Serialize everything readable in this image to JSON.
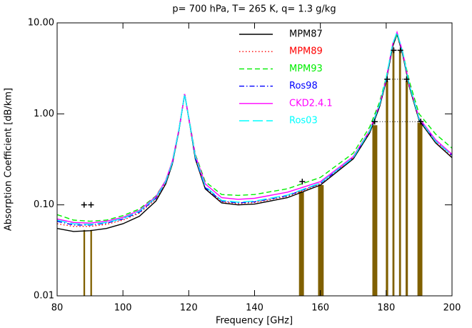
{
  "chart_data": {
    "type": "line",
    "title": "p= 700 hPa, T= 265 K, q= 1.3 g/kg",
    "xlabel": "Frequency [GHz]",
    "ylabel": "Absorption Coefficient [dB/km]",
    "ylog": true,
    "xlim": [
      80,
      200
    ],
    "xticks": [
      80,
      100,
      120,
      140,
      160,
      180,
      200
    ],
    "ylim": [
      0.01,
      10
    ],
    "yticks": [
      {
        "value": 0.01,
        "label": "0.01"
      },
      {
        "value": 0.1,
        "label": "0.10"
      },
      {
        "value": 1,
        "label": "1.00"
      },
      {
        "value": 10,
        "label": "10.00"
      }
    ],
    "x": [
      80,
      85,
      90,
      95,
      100,
      105,
      110,
      113,
      115,
      117,
      118.75,
      120.5,
      122,
      125,
      130,
      135,
      140,
      150,
      160,
      170,
      175,
      178,
      180,
      182,
      183.3,
      185,
      187,
      190,
      195,
      200
    ],
    "series": [
      {
        "name": "MPM87",
        "color": "#000000",
        "style": "solid",
        "values": [
          0.055,
          0.051,
          0.052,
          0.055,
          0.062,
          0.075,
          0.11,
          0.17,
          0.28,
          0.65,
          1.65,
          0.7,
          0.32,
          0.15,
          0.105,
          0.1,
          0.102,
          0.12,
          0.165,
          0.32,
          0.62,
          1.2,
          2.3,
          5.5,
          7.5,
          4.5,
          2.0,
          0.85,
          0.48,
          0.33
        ]
      },
      {
        "name": "MPM89",
        "color": "#ff0000",
        "style": "dotted",
        "values": [
          0.062,
          0.058,
          0.058,
          0.061,
          0.068,
          0.081,
          0.116,
          0.175,
          0.29,
          0.66,
          1.65,
          0.71,
          0.33,
          0.155,
          0.108,
          0.103,
          0.106,
          0.124,
          0.17,
          0.33,
          0.64,
          1.25,
          2.4,
          5.7,
          7.6,
          4.6,
          2.05,
          0.87,
          0.49,
          0.34
        ]
      },
      {
        "name": "MPM93",
        "color": "#00ee00",
        "style": "dashed",
        "values": [
          0.078,
          0.068,
          0.066,
          0.068,
          0.076,
          0.09,
          0.125,
          0.185,
          0.3,
          0.67,
          1.65,
          0.73,
          0.36,
          0.18,
          0.13,
          0.127,
          0.13,
          0.15,
          0.2,
          0.37,
          0.72,
          1.35,
          2.5,
          5.8,
          7.5,
          4.8,
          2.3,
          1.0,
          0.6,
          0.42
        ]
      },
      {
        "name": "Ros98",
        "color": "#0000ff",
        "style": "dashdot",
        "values": [
          0.066,
          0.06,
          0.06,
          0.063,
          0.07,
          0.083,
          0.118,
          0.178,
          0.29,
          0.66,
          1.65,
          0.71,
          0.33,
          0.155,
          0.11,
          0.105,
          0.108,
          0.126,
          0.172,
          0.33,
          0.65,
          1.25,
          2.4,
          5.8,
          7.8,
          4.7,
          2.1,
          0.88,
          0.5,
          0.35
        ]
      },
      {
        "name": "CKD2.4.1",
        "color": "#ff00ff",
        "style": "solid",
        "values": [
          0.07,
          0.064,
          0.063,
          0.066,
          0.073,
          0.087,
          0.123,
          0.185,
          0.3,
          0.67,
          1.65,
          0.72,
          0.35,
          0.17,
          0.12,
          0.115,
          0.118,
          0.138,
          0.18,
          0.34,
          0.66,
          1.27,
          2.4,
          5.9,
          7.9,
          4.8,
          2.1,
          0.9,
          0.52,
          0.36
        ]
      },
      {
        "name": "Ros03",
        "color": "#00ffff",
        "style": "longdash",
        "values": [
          0.068,
          0.062,
          0.061,
          0.064,
          0.071,
          0.085,
          0.12,
          0.18,
          0.29,
          0.66,
          1.65,
          0.71,
          0.34,
          0.16,
          0.112,
          0.107,
          0.11,
          0.128,
          0.174,
          0.33,
          0.65,
          1.26,
          2.45,
          5.9,
          7.9,
          4.75,
          2.1,
          0.88,
          0.5,
          0.35
        ]
      }
    ],
    "bands": {
      "color": "#806000",
      "x0": [
        88.0,
        90.1,
        153.5,
        159.3,
        175.8,
        179.9,
        181.9,
        183.9,
        185.9,
        189.5
      ],
      "x1": [
        88.5,
        90.6,
        155.0,
        161.0,
        177.3,
        180.6,
        182.5,
        184.5,
        186.6,
        191.0
      ],
      "values": [
        0.053,
        0.053,
        0.14,
        0.165,
        0.75,
        2.3,
        5.0,
        5.0,
        2.3,
        0.8
      ]
    },
    "markers": {
      "color": "#000000",
      "x": [
        88.2,
        90.3,
        154.5,
        176.5,
        190.5,
        180.3,
        186.2,
        182.3,
        184.3
      ],
      "values": [
        0.1,
        0.1,
        0.18,
        0.82,
        0.82,
        2.4,
        2.4,
        5.0,
        5.0
      ]
    }
  }
}
